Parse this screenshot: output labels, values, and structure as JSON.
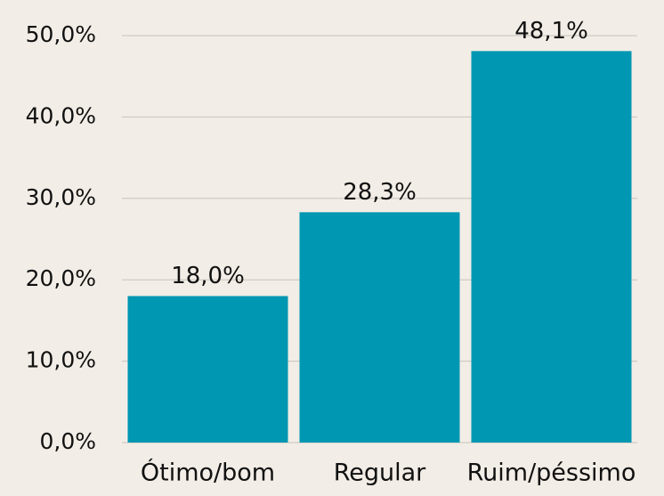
{
  "chart_data": {
    "type": "bar",
    "categories": [
      "Ótimo/bom",
      "Regular",
      "Ruim/péssimo"
    ],
    "values": [
      18.0,
      28.3,
      48.1
    ],
    "value_labels": [
      "18,0%",
      "28,3%",
      "48,1%"
    ],
    "color": "#0097b2",
    "ylim": [
      0,
      50
    ],
    "yticks": [
      {
        "value": 0,
        "label": "0,0%"
      },
      {
        "value": 10,
        "label": "10,0%"
      },
      {
        "value": 20,
        "label": "20,0%"
      },
      {
        "value": 30,
        "label": "30,0%"
      },
      {
        "value": 40,
        "label": "40,0%"
      },
      {
        "value": 50,
        "label": "50,0%"
      }
    ],
    "grid": true
  }
}
